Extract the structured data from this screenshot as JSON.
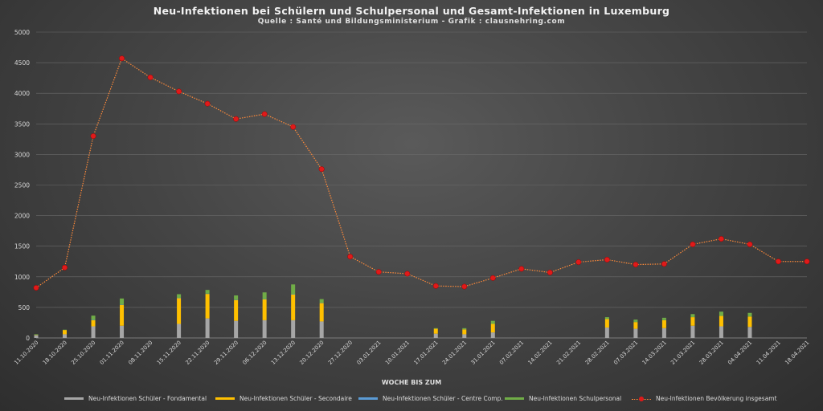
{
  "chart_data": {
    "type": "bar",
    "title": "Neu-Infektionen bei Schülern und Schulpersonal und Gesamt-Infektionen in Luxemburg",
    "subtitle": "Quelle : Santé und Bildungsministerium  - Grafik : clausnehring.com",
    "xlabel": "WOCHE BIS ZUM",
    "ylabel": "",
    "ylim": [
      0,
      5000
    ],
    "yticks": [
      0,
      500,
      1000,
      1500,
      2000,
      2500,
      3000,
      3500,
      4000,
      4500,
      5000
    ],
    "grid": true,
    "legend_position": "bottom",
    "categories": [
      "11.10.2020",
      "18.10.2020",
      "25.10.2020",
      "01.11.2020",
      "08.11.2020",
      "15.11.2020",
      "22.11.2020",
      "29.11.2020",
      "06.12.2020",
      "13.12.2020",
      "20.12.2020",
      "27.12.2020",
      "03.01.2021",
      "10.01.2021",
      "17.01.2021",
      "24.01.2021",
      "31.01.2021",
      "07.02.2021",
      "14.02.2021",
      "21.02.2021",
      "28.02.2021",
      "07.03.2021",
      "14.03.2021",
      "21.03.2021",
      "28.03.2021",
      "04.04.2021",
      "11.04.2021",
      "18.04.2021"
    ],
    "series": [
      {
        "name": "Neu-Infektionen Schüler - Fondamental",
        "kind": "bar",
        "color": "#a6a6a6",
        "values": [
          45,
          60,
          190,
          200,
          0,
          230,
          320,
          280,
          290,
          290,
          270,
          0,
          0,
          0,
          70,
          60,
          90,
          0,
          0,
          0,
          170,
          150,
          160,
          200,
          190,
          180,
          0,
          0
        ]
      },
      {
        "name": "Neu-Infektionen Schüler - Secondaire",
        "kind": "bar",
        "color": "#ffc000",
        "values": [
          5,
          70,
          100,
          340,
          0,
          420,
          400,
          340,
          340,
          420,
          300,
          0,
          0,
          0,
          80,
          80,
          140,
          0,
          0,
          0,
          140,
          110,
          130,
          140,
          170,
          170,
          0,
          0
        ]
      },
      {
        "name": "Neu-Infektionen Schüler - Centre Comp.",
        "kind": "bar",
        "color": "#5b9bd5",
        "values": [
          0,
          0,
          5,
          5,
          0,
          5,
          5,
          5,
          5,
          5,
          5,
          0,
          0,
          0,
          0,
          0,
          0,
          0,
          0,
          0,
          0,
          0,
          0,
          0,
          0,
          0,
          0,
          0
        ]
      },
      {
        "name": "Neu-Infektionen Schulpersonal",
        "kind": "bar",
        "color": "#70ad47",
        "values": [
          10,
          5,
          70,
          100,
          0,
          60,
          60,
          70,
          110,
          160,
          60,
          0,
          0,
          0,
          10,
          20,
          50,
          0,
          0,
          0,
          30,
          40,
          40,
          50,
          70,
          60,
          0,
          0
        ]
      },
      {
        "name": "Neu-Infektionen Bevölkerung insgesamt",
        "kind": "line",
        "color": "#ff8a3a",
        "marker_color": "#e01a1a",
        "values": [
          820,
          1150,
          3300,
          4570,
          4260,
          4030,
          3830,
          3580,
          3660,
          3450,
          2760,
          1330,
          1080,
          1050,
          850,
          840,
          980,
          1130,
          1070,
          1240,
          1280,
          1200,
          1210,
          1530,
          1620,
          1530,
          1250,
          1250
        ]
      }
    ]
  }
}
